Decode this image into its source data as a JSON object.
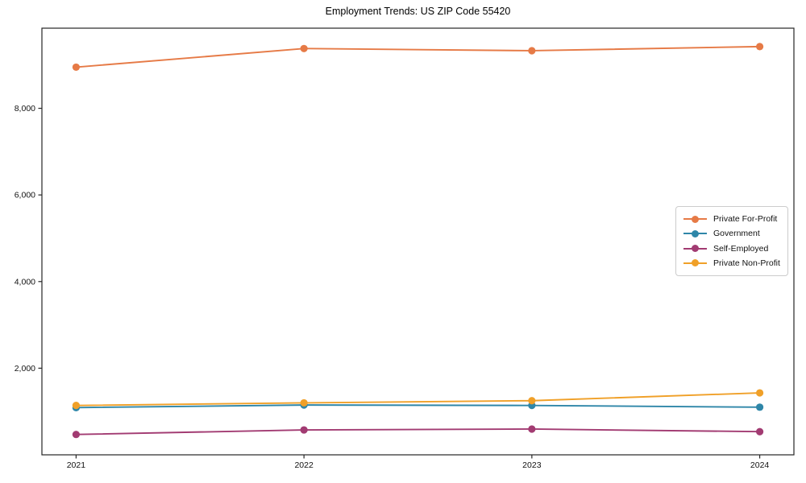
{
  "chart_data": {
    "type": "line",
    "title": "Employment Trends: US ZIP Code 55420",
    "x": [
      2021,
      2022,
      2023,
      2024
    ],
    "x_tick_labels": [
      "2021",
      "2022",
      "2023",
      "2024"
    ],
    "y_ticks": [
      2000,
      4000,
      6000,
      8000
    ],
    "y_tick_labels": [
      "2,000",
      "4,000",
      "6,000",
      "8,000"
    ],
    "xlim": [
      2020.85,
      2024.15
    ],
    "ylim": [
      0,
      9850
    ],
    "grid": false,
    "legend_position": "center-right",
    "marker": "circle",
    "series": [
      {
        "name": "Private For-Profit",
        "color": "#E67A46",
        "values": [
          8950,
          9380,
          9330,
          9425
        ]
      },
      {
        "name": "Government",
        "color": "#2E86A8",
        "values": [
          1090,
          1150,
          1140,
          1100
        ]
      },
      {
        "name": "Self-Employed",
        "color": "#A23B72",
        "values": [
          470,
          575,
          595,
          535
        ]
      },
      {
        "name": "Private Non-Profit",
        "color": "#F0A028",
        "values": [
          1140,
          1200,
          1250,
          1430
        ]
      }
    ]
  },
  "axis_style": {
    "spine_color": "#262626",
    "tick_color": "#262626",
    "tick_label_color": "#111111",
    "background": "#ffffff"
  }
}
